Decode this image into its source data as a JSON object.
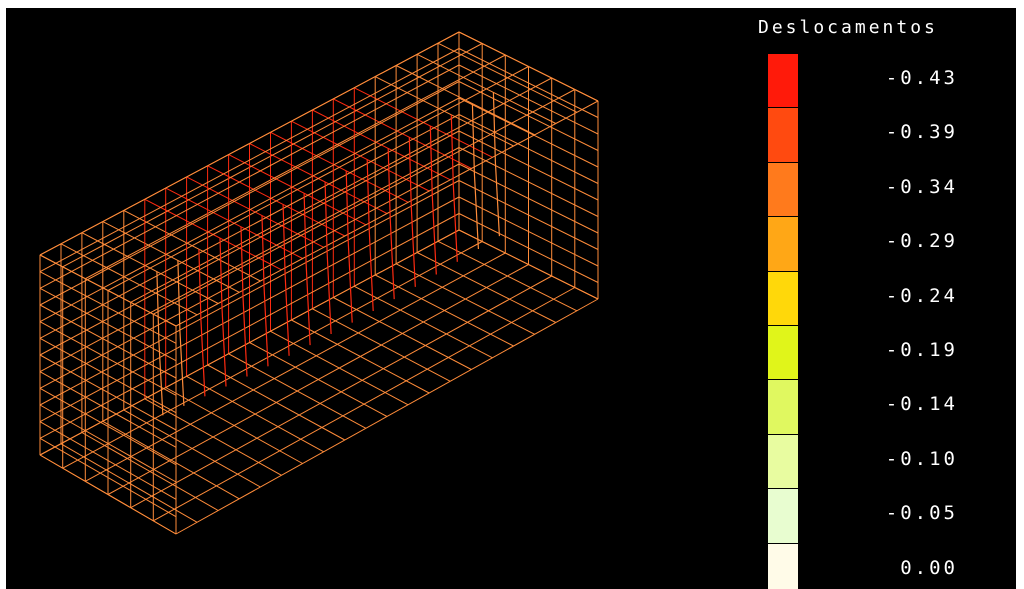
{
  "legend": {
    "title": "Deslocamentos",
    "levels": [
      {
        "label": "-0.43",
        "color": "#ff1a0a"
      },
      {
        "label": "-0.39",
        "color": "#ff4a10"
      },
      {
        "label": "-0.34",
        "color": "#ff7a1c"
      },
      {
        "label": "-0.29",
        "color": "#ffa716"
      },
      {
        "label": "-0.24",
        "color": "#ffd80a"
      },
      {
        "label": "-0.19",
        "color": "#e0f51a"
      },
      {
        "label": "-0.14",
        "color": "#e0f860"
      },
      {
        "label": "-0.10",
        "color": "#e8fca0"
      },
      {
        "label": "-0.05",
        "color": "#e8fdd0"
      },
      {
        "label": "0.00",
        "color": "#fffbe8"
      }
    ]
  },
  "mesh": {
    "line_color": "#ff8c3a",
    "hot_color": "#ff2a10",
    "nx": 20,
    "ny": 12,
    "nz": 10
  }
}
